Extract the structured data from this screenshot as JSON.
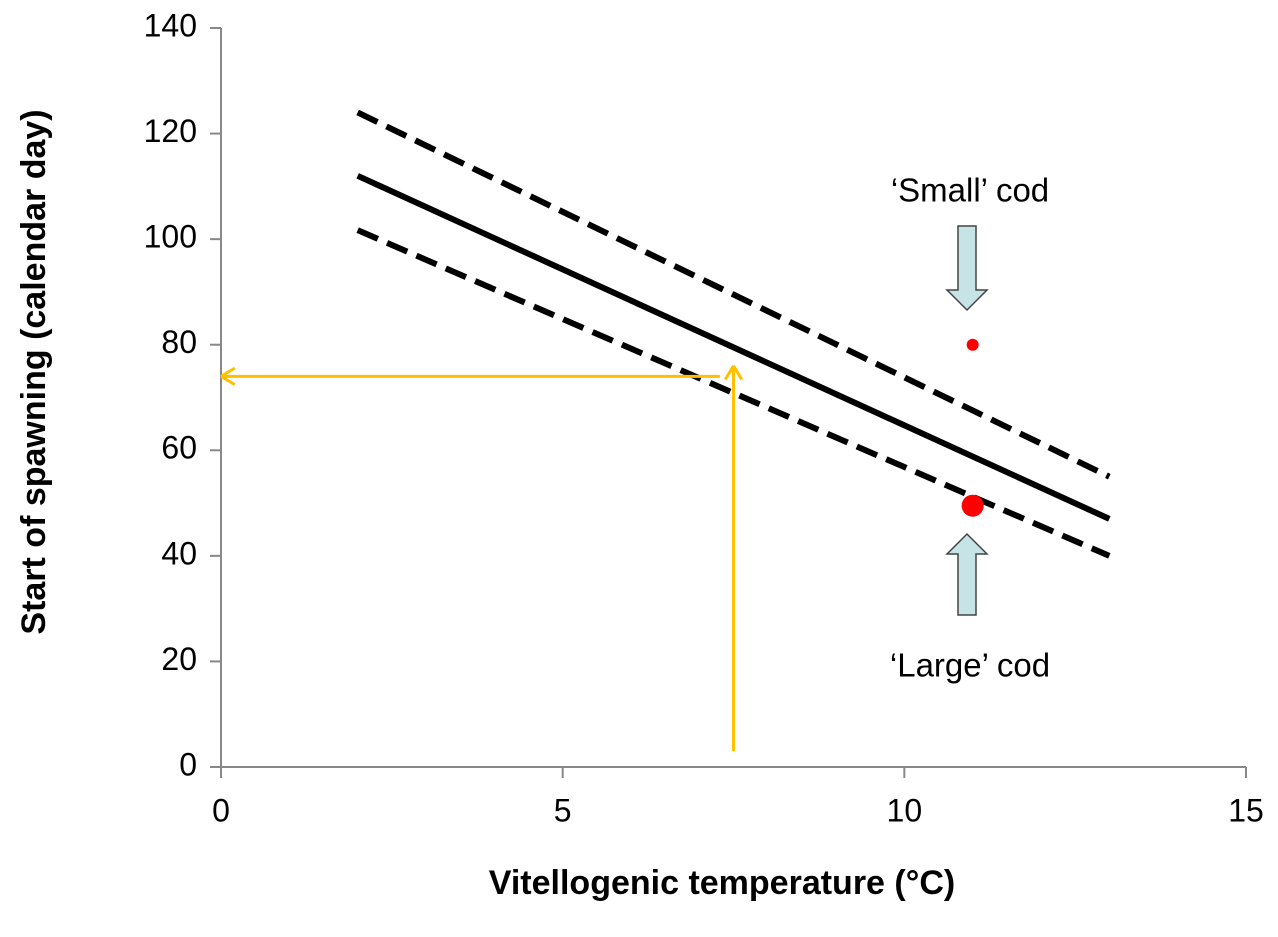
{
  "chart_data": {
    "type": "line",
    "x_label": "Vitellogenic temperature (°C)",
    "y_label": "Start of spawning  (calendar day)",
    "x": [
      2,
      13
    ],
    "series": [
      {
        "color": "#000000",
        "dashed": true,
        "values": [
          124,
          55
        ]
      },
      {
        "color": "#000000",
        "dashed": false,
        "values": [
          112,
          47
        ]
      },
      {
        "color": "#000000",
        "dashed": true,
        "values": [
          101.7,
          40
        ]
      }
    ],
    "points": {
      "x": [
        11,
        11
      ],
      "values": [
        80,
        49.5
      ],
      "color": "#ff0000",
      "marker_sizes": [
        6,
        11
      ]
    },
    "guides": {
      "color": "#ffc000",
      "vertical": {
        "x": 7.5,
        "y": [
          3,
          76
        ]
      },
      "horizontal": {
        "y": 74,
        "x": [
          7.3,
          0
        ]
      }
    },
    "annotations": [
      "‘Small’ cod",
      "‘Large’ cod"
    ],
    "xlim": [
      0,
      15
    ],
    "xticks": [
      0,
      5,
      10,
      15
    ],
    "ylim": [
      0,
      140
    ],
    "yticks": [
      0,
      20,
      40,
      60,
      80,
      100,
      120,
      140
    ]
  }
}
